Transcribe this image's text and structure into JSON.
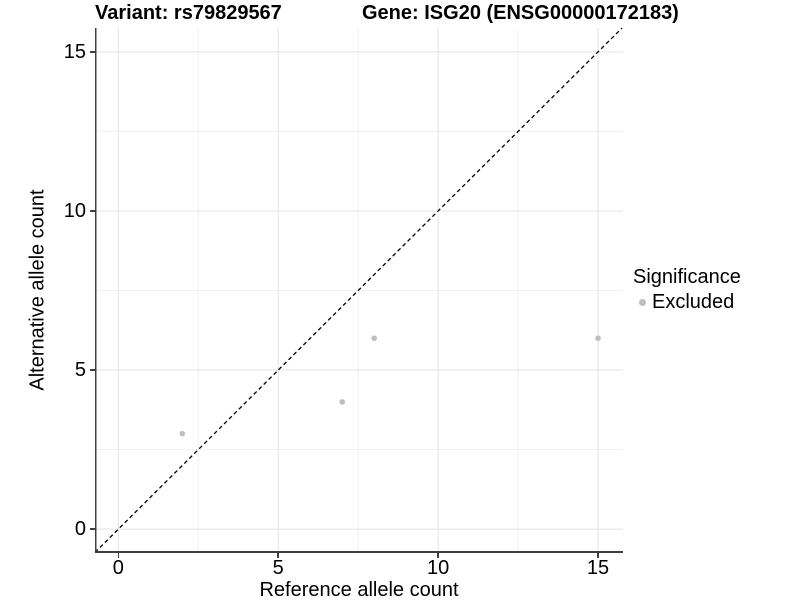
{
  "titles": {
    "left": "Variant: rs79829567",
    "right": "Gene: ISG20 (ENSG00000172183)"
  },
  "chart_data": {
    "type": "scatter",
    "title": "Variant: rs79829567   Gene: ISG20 (ENSG00000172183)",
    "xlabel": "Reference allele count",
    "ylabel": "Alternative allele count",
    "xlim": [
      -0.73,
      15.78
    ],
    "ylim": [
      -0.75,
      15.75
    ],
    "x_ticks": [
      0,
      5,
      10,
      15
    ],
    "y_ticks": [
      0,
      5,
      10,
      15
    ],
    "x_minor_ticks": [
      2.5,
      7.5,
      12.5
    ],
    "y_minor_ticks": [
      2.5,
      7.5,
      12.5
    ],
    "grid": "major and minor, light gray, on white panel",
    "legend": {
      "title": "Significance",
      "position": "right",
      "items": [
        {
          "label": "Excluded",
          "color": "#bebebe"
        }
      ]
    },
    "series": [
      {
        "name": "Excluded",
        "color": "#bebebe",
        "points": [
          {
            "x": 2,
            "y": 3
          },
          {
            "x": 7,
            "y": 4
          },
          {
            "x": 8,
            "y": 6
          },
          {
            "x": 15,
            "y": 6
          }
        ]
      }
    ],
    "reference_line": {
      "type": "identity y=x",
      "style": "dashed",
      "color": "#000000"
    }
  },
  "colors": {
    "background": "#ffffff",
    "grid_major": "#e3e3e3",
    "grid_minor": "#f1f1f1",
    "axis_line": "#3f3f3f",
    "point": "#bebebe",
    "text": "#000000"
  }
}
